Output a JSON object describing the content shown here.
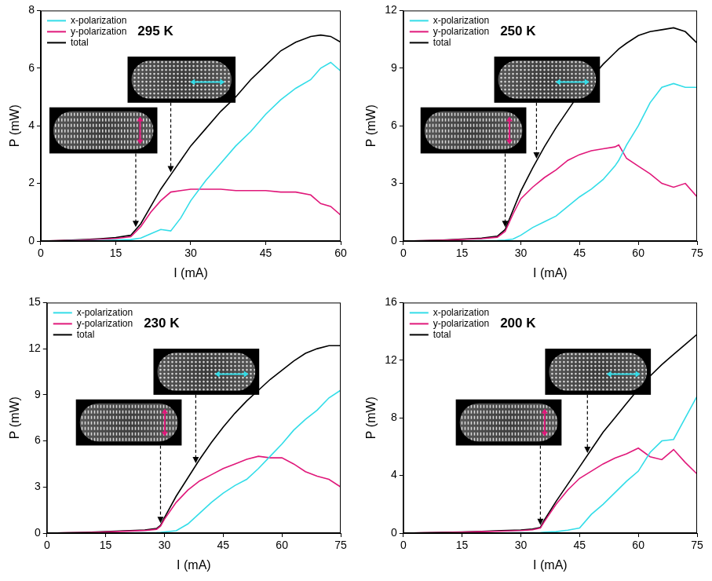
{
  "chart_data": [
    {
      "type": "line",
      "title": "295 K",
      "x_label": "I (mA)",
      "y_label": "P (mW)",
      "x": [
        0,
        3,
        6,
        9,
        12,
        15,
        18,
        20,
        22,
        24,
        26,
        28,
        30,
        33,
        36,
        39,
        42,
        45,
        48,
        51,
        54,
        56,
        58,
        60
      ],
      "series": [
        {
          "name": "x-polarization",
          "color": "#33dde8",
          "values": [
            0,
            0,
            0.01,
            0.01,
            0.02,
            0.03,
            0.05,
            0.1,
            0.25,
            0.4,
            0.35,
            0.8,
            1.4,
            2.1,
            2.7,
            3.3,
            3.8,
            4.4,
            4.9,
            5.3,
            5.6,
            6.0,
            6.2,
            5.9
          ]
        },
        {
          "name": "y-polarization",
          "color": "#e0187a",
          "values": [
            0,
            0.01,
            0.02,
            0.04,
            0.06,
            0.09,
            0.15,
            0.5,
            1.0,
            1.4,
            1.7,
            1.75,
            1.8,
            1.8,
            1.8,
            1.75,
            1.75,
            1.75,
            1.7,
            1.7,
            1.6,
            1.3,
            1.2,
            0.9
          ]
        },
        {
          "name": "total",
          "color": "#000000",
          "values": [
            0,
            0.01,
            0.03,
            0.05,
            0.08,
            0.12,
            0.2,
            0.6,
            1.2,
            1.8,
            2.3,
            2.8,
            3.3,
            3.9,
            4.5,
            5.0,
            5.6,
            6.1,
            6.6,
            6.9,
            7.1,
            7.15,
            7.1,
            6.9
          ]
        }
      ],
      "inset_currents": [
        19,
        26
      ],
      "xlim": [
        0,
        60
      ],
      "xticks": [
        0,
        15,
        30,
        45,
        60
      ],
      "ylim": [
        0,
        8
      ],
      "yticks": [
        0,
        2,
        4,
        6,
        8
      ],
      "grid": false,
      "legend": "upper left"
    },
    {
      "type": "line",
      "title": "250 K",
      "x_label": "I (mA)",
      "y_label": "P (mW)",
      "x": [
        0,
        5,
        10,
        15,
        20,
        24,
        26,
        28,
        30,
        33,
        36,
        39,
        42,
        45,
        48,
        51,
        54,
        55,
        57,
        60,
        63,
        66,
        69,
        72,
        75
      ],
      "series": [
        {
          "name": "x-polarization",
          "color": "#33dde8",
          "values": [
            0,
            0,
            0,
            0.01,
            0.02,
            0.03,
            0.05,
            0.1,
            0.3,
            0.7,
            1.0,
            1.3,
            1.8,
            2.3,
            2.7,
            3.2,
            3.9,
            4.2,
            5.0,
            6.0,
            7.2,
            8.0,
            8.2,
            8.0,
            8.0
          ]
        },
        {
          "name": "y-polarization",
          "color": "#e0187a",
          "values": [
            0,
            0.02,
            0.04,
            0.08,
            0.12,
            0.2,
            0.5,
            1.4,
            2.2,
            2.8,
            3.3,
            3.7,
            4.2,
            4.5,
            4.7,
            4.8,
            4.9,
            5.0,
            4.3,
            3.9,
            3.5,
            3.0,
            2.8,
            3.0,
            2.3
          ]
        },
        {
          "name": "total",
          "color": "#000000",
          "values": [
            0,
            0.02,
            0.05,
            0.1,
            0.15,
            0.25,
            0.6,
            1.6,
            2.6,
            3.8,
            4.9,
            5.9,
            6.8,
            7.7,
            8.5,
            9.2,
            9.8,
            10.0,
            10.3,
            10.7,
            10.9,
            11.0,
            11.1,
            10.9,
            10.3
          ]
        }
      ],
      "inset_currents": [
        26,
        34
      ],
      "xlim": [
        0,
        75
      ],
      "xticks": [
        0,
        15,
        30,
        45,
        60,
        75
      ],
      "ylim": [
        0,
        12
      ],
      "yticks": [
        0,
        3,
        6,
        9,
        12
      ],
      "grid": false,
      "legend": "upper left"
    },
    {
      "type": "line",
      "title": "230 K",
      "x_label": "I (mA)",
      "y_label": "P (mW)",
      "x": [
        0,
        5,
        10,
        15,
        20,
        25,
        28,
        29,
        30,
        33,
        36,
        39,
        42,
        45,
        48,
        51,
        54,
        57,
        60,
        63,
        66,
        69,
        72,
        75
      ],
      "series": [
        {
          "name": "x-polarization",
          "color": "#33dde8",
          "values": [
            0,
            0,
            0,
            0,
            0.01,
            0.02,
            0.03,
            0.05,
            0.08,
            0.15,
            0.6,
            1.3,
            2.0,
            2.6,
            3.1,
            3.5,
            4.2,
            5.0,
            5.8,
            6.7,
            7.4,
            8.0,
            8.8,
            9.3
          ]
        },
        {
          "name": "y-polarization",
          "color": "#e0187a",
          "values": [
            0,
            0.02,
            0.04,
            0.08,
            0.12,
            0.17,
            0.25,
            0.45,
            0.9,
            2.0,
            2.8,
            3.4,
            3.8,
            4.2,
            4.5,
            4.8,
            5.0,
            4.9,
            4.9,
            4.5,
            4.0,
            3.7,
            3.5,
            3.0
          ]
        },
        {
          "name": "total",
          "color": "#000000",
          "values": [
            0,
            0.02,
            0.05,
            0.1,
            0.15,
            0.2,
            0.3,
            0.5,
            1.0,
            2.4,
            3.6,
            4.8,
            5.9,
            6.9,
            7.8,
            8.6,
            9.3,
            10.0,
            10.6,
            11.2,
            11.7,
            12.0,
            12.2,
            12.2
          ]
        }
      ],
      "inset_currents": [
        29,
        38
      ],
      "xlim": [
        0,
        75
      ],
      "xticks": [
        0,
        15,
        30,
        45,
        60,
        75
      ],
      "ylim": [
        0,
        15
      ],
      "yticks": [
        0,
        3,
        6,
        9,
        12,
        15
      ],
      "grid": false,
      "legend": "upper left"
    },
    {
      "type": "line",
      "title": "200 K",
      "x_label": "I (mA)",
      "y_label": "P (mW)",
      "x": [
        0,
        5,
        10,
        15,
        20,
        25,
        30,
        33,
        35,
        36,
        39,
        42,
        45,
        48,
        51,
        54,
        57,
        60,
        63,
        66,
        69,
        72,
        75
      ],
      "series": [
        {
          "name": "x-polarization",
          "color": "#33dde8",
          "values": [
            0,
            0,
            0,
            0,
            0,
            0.01,
            0.02,
            0.03,
            0.04,
            0.06,
            0.1,
            0.2,
            0.35,
            1.3,
            2.0,
            2.8,
            3.6,
            4.3,
            5.6,
            6.4,
            6.5,
            8.0,
            9.5
          ]
        },
        {
          "name": "y-polarization",
          "color": "#e0187a",
          "values": [
            0,
            0.02,
            0.04,
            0.07,
            0.1,
            0.14,
            0.18,
            0.23,
            0.35,
            0.8,
            2.0,
            3.0,
            3.8,
            4.3,
            4.8,
            5.2,
            5.5,
            5.9,
            5.3,
            5.1,
            5.8,
            4.9,
            4.1
          ]
        },
        {
          "name": "total",
          "color": "#000000",
          "values": [
            0,
            0.02,
            0.05,
            0.08,
            0.12,
            0.17,
            0.22,
            0.28,
            0.4,
            0.9,
            2.2,
            3.4,
            4.6,
            5.8,
            7.0,
            8.0,
            9.0,
            10.0,
            10.9,
            11.7,
            12.4,
            13.1,
            13.8
          ]
        }
      ],
      "inset_currents": [
        35,
        47
      ],
      "xlim": [
        0,
        75
      ],
      "xticks": [
        0,
        15,
        30,
        45,
        60,
        75
      ],
      "ylim": [
        0,
        16
      ],
      "yticks": [
        0,
        4,
        8,
        12,
        16
      ],
      "grid": false,
      "legend": "upper left"
    }
  ]
}
